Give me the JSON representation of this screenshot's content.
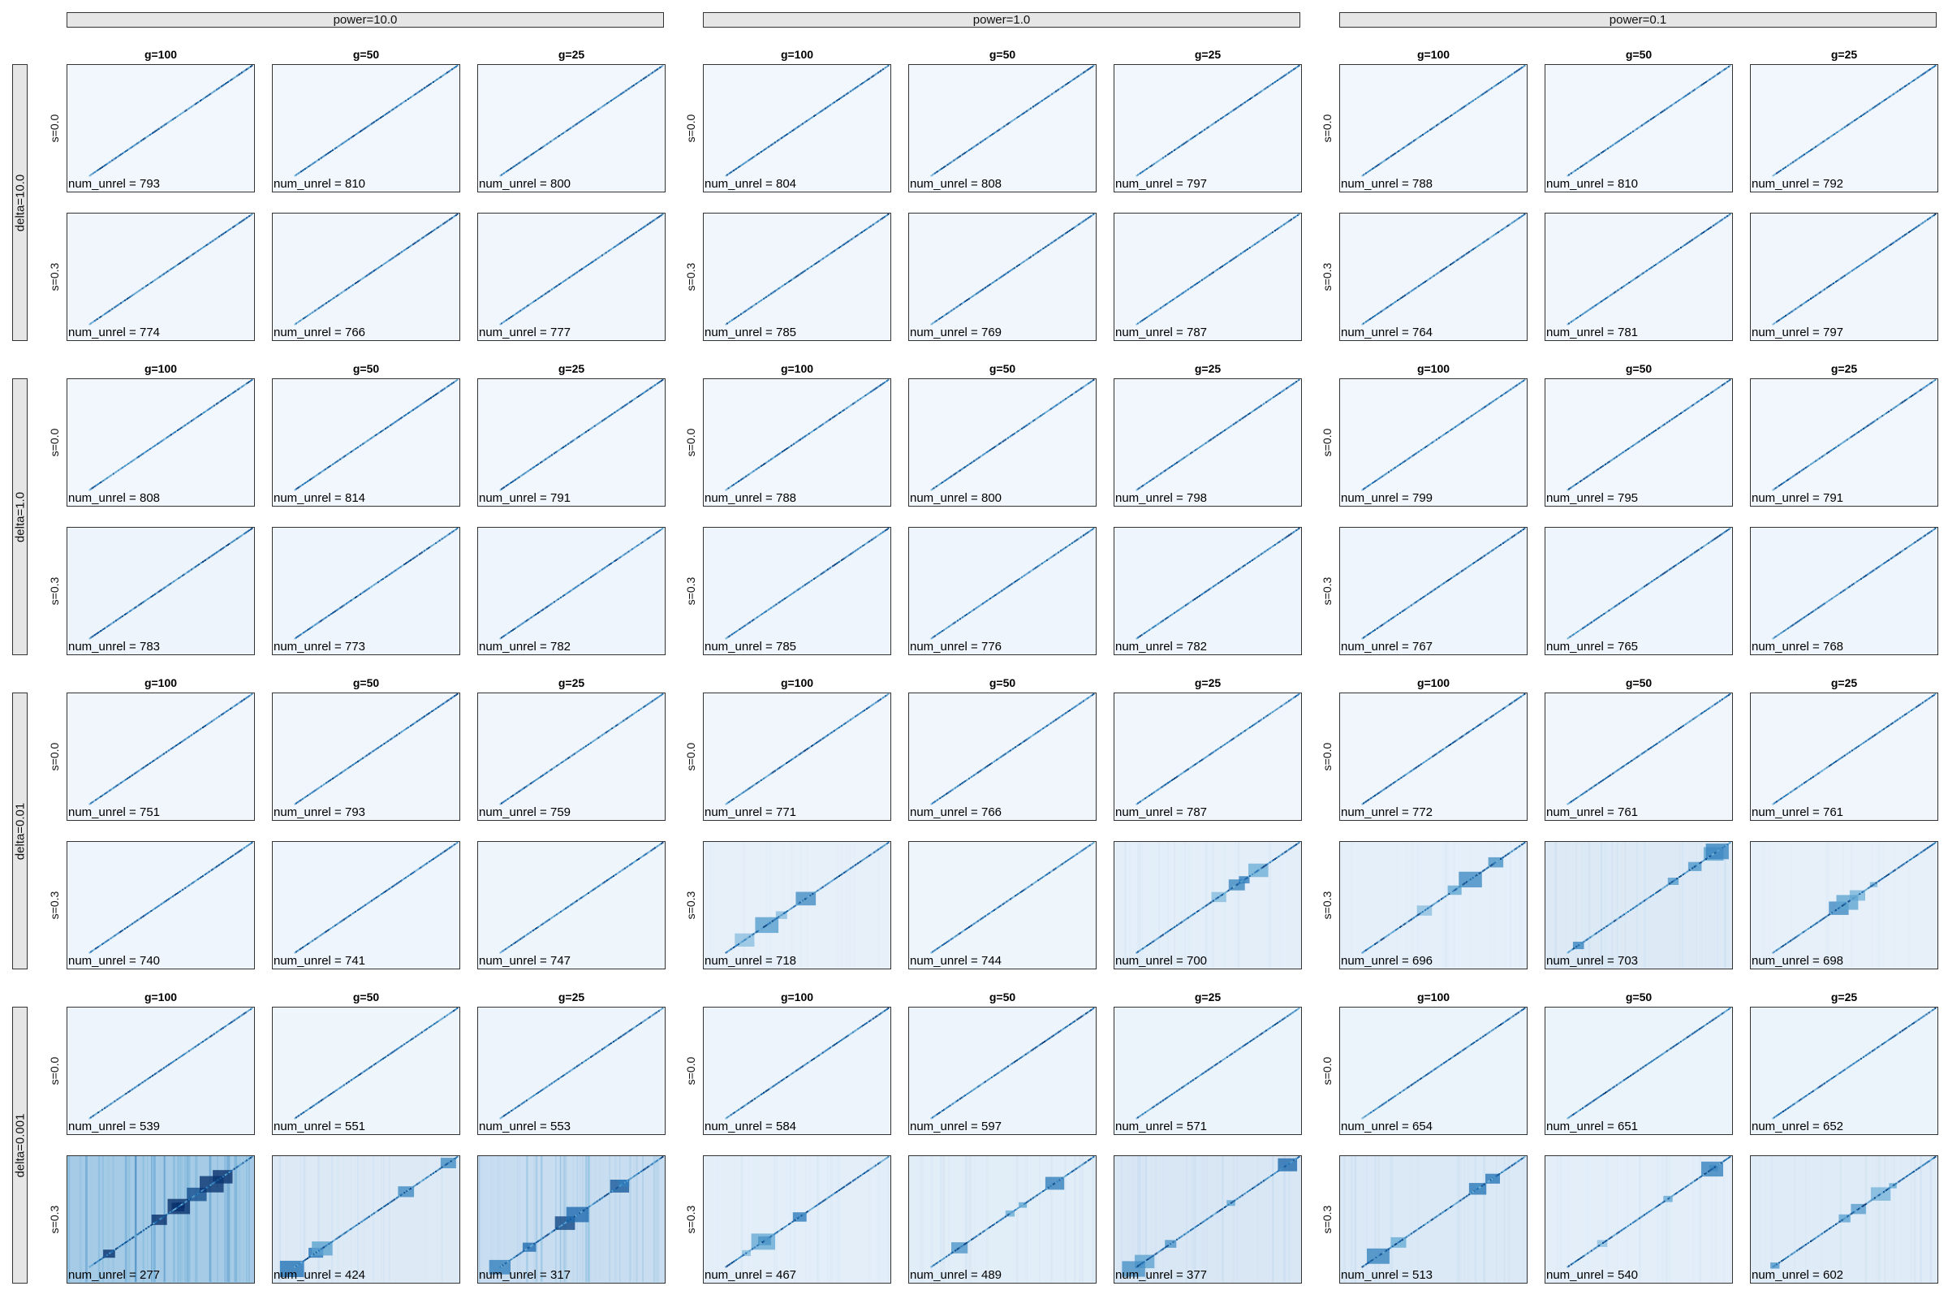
{
  "chart_data": {
    "type": "heatmap",
    "colormap": "Blues",
    "colors": {
      "low": "#f3f8fd",
      "mid": "#6baed6",
      "high": "#08306b"
    },
    "columns": [
      "power=10.0",
      "power=1.0",
      "power=0.1"
    ],
    "rows": [
      "delta=10.0",
      "delta=1.0",
      "delta=0.01",
      "delta=0.001"
    ],
    "g_labels": [
      "g=100",
      "g=50",
      "g=25"
    ],
    "s_labels": [
      "s=0.0",
      "s=0.3"
    ],
    "unrel_prefix": "num_unrel = ",
    "num_unrel": [
      [
        [
          793,
          810,
          800,
          804,
          808,
          797,
          788,
          810,
          792
        ],
        [
          774,
          766,
          777,
          785,
          769,
          787,
          764,
          781,
          797
        ]
      ],
      [
        [
          808,
          814,
          791,
          788,
          800,
          798,
          799,
          795,
          791
        ],
        [
          783,
          773,
          782,
          785,
          776,
          782,
          767,
          765,
          768
        ]
      ],
      [
        [
          751,
          793,
          759,
          771,
          766,
          787,
          772,
          761,
          761
        ],
        [
          740,
          741,
          747,
          718,
          744,
          700,
          696,
          703,
          698
        ]
      ],
      [
        [
          539,
          551,
          553,
          584,
          597,
          571,
          654,
          651,
          652
        ],
        [
          277,
          424,
          317,
          467,
          489,
          377,
          513,
          540,
          602
        ]
      ]
    ],
    "background_intensity": [
      [
        [
          0.02,
          0.02,
          0.02,
          0.02,
          0.02,
          0.02,
          0.02,
          0.02,
          0.02
        ],
        [
          0.03,
          0.03,
          0.03,
          0.03,
          0.03,
          0.03,
          0.03,
          0.03,
          0.03
        ]
      ],
      [
        [
          0.02,
          0.02,
          0.02,
          0.02,
          0.02,
          0.02,
          0.02,
          0.02,
          0.02
        ],
        [
          0.06,
          0.04,
          0.04,
          0.04,
          0.04,
          0.04,
          0.04,
          0.04,
          0.04
        ]
      ],
      [
        [
          0.03,
          0.03,
          0.03,
          0.03,
          0.03,
          0.03,
          0.03,
          0.03,
          0.03
        ],
        [
          0.04,
          0.04,
          0.05,
          0.12,
          0.05,
          0.16,
          0.14,
          0.22,
          0.12
        ]
      ],
      [
        [
          0.06,
          0.05,
          0.06,
          0.06,
          0.06,
          0.08,
          0.08,
          0.08,
          0.08
        ],
        [
          0.62,
          0.22,
          0.42,
          0.16,
          0.18,
          0.26,
          0.24,
          0.16,
          0.2
        ]
      ]
    ]
  }
}
